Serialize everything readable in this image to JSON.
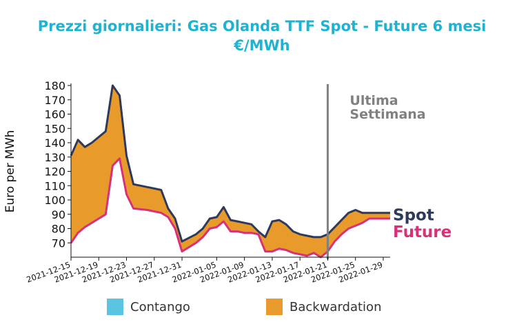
{
  "title_line1": "Prezzi giornalieri: Gas Olanda TTF Spot - Future 6 mesi",
  "title_line2": "€/MWh",
  "chart_data": {
    "type": "area",
    "ylabel": "Euro per MWh",
    "xlabel": "",
    "ylim": [
      60,
      180
    ],
    "yticks": [
      70,
      80,
      90,
      100,
      110,
      120,
      130,
      140,
      150,
      160,
      170,
      180
    ],
    "xlim": [
      "2021-12-15",
      "2022-01-30"
    ],
    "xticks": [
      "2021-12-15",
      "2021-12-19",
      "2021-12-23",
      "2021-12-27",
      "2021-12-31",
      "2022-01-05",
      "2022-01-09",
      "2022-01-13",
      "2022-01-17",
      "2022-01-21",
      "2022-01-25",
      "2022-01-29"
    ],
    "vline": {
      "date": "2022-01-21",
      "label_line1": "Ultima",
      "label_line2": "Settimana"
    },
    "x": [
      "2021-12-15",
      "2021-12-16",
      "2021-12-17",
      "2021-12-18",
      "2021-12-19",
      "2021-12-20",
      "2021-12-21",
      "2021-12-22",
      "2021-12-23",
      "2021-12-24",
      "2021-12-26",
      "2021-12-27",
      "2021-12-28",
      "2021-12-29",
      "2021-12-30",
      "2021-12-31",
      "2022-01-02",
      "2022-01-03",
      "2022-01-04",
      "2022-01-05",
      "2022-01-06",
      "2022-01-07",
      "2022-01-08",
      "2022-01-09",
      "2022-01-10",
      "2022-01-11",
      "2022-01-12",
      "2022-01-13",
      "2022-01-14",
      "2022-01-15",
      "2022-01-16",
      "2022-01-17",
      "2022-01-18",
      "2022-01-19",
      "2022-01-20",
      "2022-01-21",
      "2022-01-22",
      "2022-01-23",
      "2022-01-24",
      "2022-01-25",
      "2022-01-26",
      "2022-01-27",
      "2022-01-28",
      "2022-01-29",
      "2022-01-30"
    ],
    "series": [
      {
        "name": "Spot",
        "color": "#2e3a59",
        "values": [
          131,
          142,
          137,
          140,
          144,
          148,
          180,
          173,
          131,
          111,
          109,
          108,
          107,
          94,
          87,
          71,
          76,
          80,
          87,
          88,
          95,
          86,
          85,
          84,
          83,
          78,
          74,
          85,
          86,
          83,
          78,
          76,
          75,
          74,
          74,
          76,
          81,
          86,
          91,
          93,
          91,
          91,
          91,
          91,
          91
        ]
      },
      {
        "name": "Future",
        "color": "#d9307a",
        "values": [
          70,
          77,
          81,
          84,
          87,
          90,
          124,
          129,
          104,
          94,
          93,
          92,
          91,
          88,
          80,
          64,
          70,
          74,
          80,
          81,
          85,
          78,
          78,
          77,
          77,
          76,
          64,
          64,
          66,
          65,
          63,
          62,
          61,
          63,
          60,
          64,
          71,
          76,
          80,
          82,
          84,
          87,
          87,
          87,
          87
        ]
      }
    ],
    "legend": [
      {
        "name": "Contango",
        "color": "#5bc4e0"
      },
      {
        "name": "Backwardation",
        "color": "#e89b2b"
      }
    ]
  }
}
